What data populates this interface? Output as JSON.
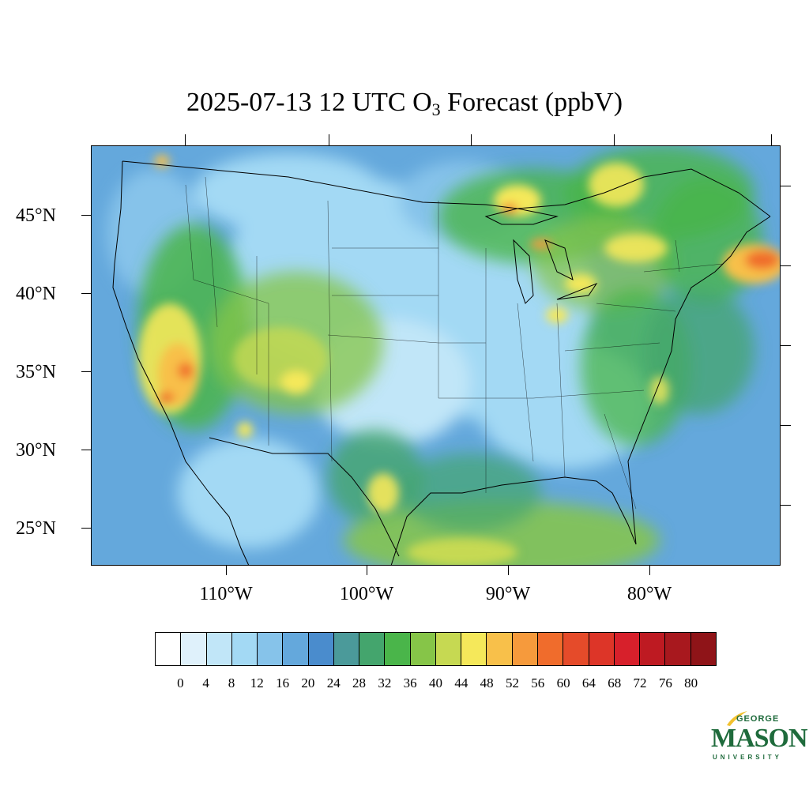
{
  "title": {
    "prefix": "2025-07-13 12 UTC O",
    "subscript": "3",
    "suffix": " Forecast (ppbV)"
  },
  "map": {
    "region": "Contiguous United States",
    "lat_labels": [
      "45°N",
      "40°N",
      "35°N",
      "30°N",
      "25°N"
    ],
    "lon_labels": [
      "110°W",
      "100°W",
      "90°W",
      "80°W"
    ],
    "background_color": "#5fa1d8",
    "hotspots": [
      {
        "name": "great-lakes-upper",
        "value": 56
      },
      {
        "name": "lake-michigan-north",
        "value": 56
      },
      {
        "name": "atlantic-northeast",
        "value": 60
      },
      {
        "name": "arizona-nevada",
        "value": 64
      },
      {
        "name": "gulf-coast",
        "value": 44
      }
    ]
  },
  "colorbar": {
    "ticks": [
      "0",
      "4",
      "8",
      "12",
      "16",
      "20",
      "24",
      "28",
      "32",
      "36",
      "40",
      "44",
      "48",
      "52",
      "56",
      "60",
      "64",
      "68",
      "72",
      "76",
      "80"
    ],
    "colors": [
      "#ffffff",
      "#dff1fb",
      "#c1e6f8",
      "#a3d9f4",
      "#86c3ea",
      "#64a8dc",
      "#4a8ccd",
      "#4b9a9a",
      "#44a56d",
      "#4ab54a",
      "#86c548",
      "#c6d952",
      "#f5e85a",
      "#f8c04a",
      "#f69a3c",
      "#f06c2c",
      "#e54b2a",
      "#dd3528",
      "#d7202b",
      "#be1a22",
      "#a8181e",
      "#8f1418"
    ]
  },
  "logo": {
    "line1": "GEORGE",
    "line2": "MASON",
    "line3": "UNIVERSITY",
    "color": "#1f6b3c",
    "accent": "#f2c12e"
  }
}
